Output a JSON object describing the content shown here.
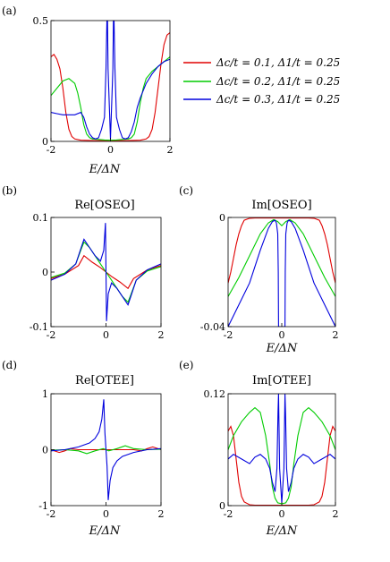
{
  "legend": [
    {
      "label": "Δc/t = 0.1, Δ1/t = 0.25",
      "color": "#e00000"
    },
    {
      "label": "Δc/t = 0.2, Δ1/t = 0.25",
      "color": "#00cc00"
    },
    {
      "label": "Δc/t = 0.3, Δ1/t = 0.25",
      "color": "#0000dd"
    }
  ],
  "chart_data": [
    {
      "panel": "(a)",
      "type": "line",
      "title": "",
      "xlabel": "E/ΔN",
      "ylabel": "",
      "xlim": [
        -2,
        2
      ],
      "ylim": [
        0,
        0.5
      ],
      "xticks": [
        "-2",
        "0",
        "2"
      ],
      "yticks": [
        "0",
        "0.5"
      ],
      "series": [
        {
          "name": "Δc/t = 0.1, Δ1/t = 0.25",
          "color": "#e00000",
          "x": [
            -2,
            -1.9,
            -1.8,
            -1.7,
            -1.6,
            -1.5,
            -1.4,
            -1.3,
            -1.2,
            -1,
            -0.5,
            0,
            0.5,
            1,
            1.2,
            1.3,
            1.4,
            1.5,
            1.6,
            1.7,
            1.8,
            1.9,
            2
          ],
          "y": [
            0.35,
            0.36,
            0.34,
            0.3,
            0.22,
            0.12,
            0.05,
            0.02,
            0.01,
            0.005,
            0.003,
            0.003,
            0.003,
            0.005,
            0.01,
            0.02,
            0.05,
            0.12,
            0.22,
            0.32,
            0.4,
            0.44,
            0.45
          ]
        },
        {
          "name": "Δc/t = 0.2, Δ1/t = 0.25",
          "color": "#00cc00",
          "x": [
            -2,
            -1.8,
            -1.6,
            -1.4,
            -1.2,
            -1.1,
            -1,
            -0.9,
            -0.8,
            -0.7,
            -0.6,
            -0.4,
            -0.2,
            0,
            0.2,
            0.4,
            0.6,
            0.7,
            0.8,
            0.9,
            1,
            1.1,
            1.2,
            1.4,
            1.6,
            1.8,
            2
          ],
          "y": [
            0.19,
            0.22,
            0.25,
            0.26,
            0.24,
            0.2,
            0.14,
            0.07,
            0.03,
            0.015,
            0.01,
            0.008,
            0.006,
            0.005,
            0.006,
            0.008,
            0.01,
            0.015,
            0.03,
            0.08,
            0.16,
            0.22,
            0.26,
            0.29,
            0.31,
            0.33,
            0.35
          ]
        },
        {
          "name": "Δc/t = 0.3, Δ1/t = 0.25",
          "color": "#0000dd",
          "x": [
            -2,
            -1.8,
            -1.6,
            -1.4,
            -1.2,
            -1,
            -0.9,
            -0.8,
            -0.7,
            -0.6,
            -0.5,
            -0.4,
            -0.3,
            -0.2,
            -0.15,
            -0.12,
            -0.1,
            -0.08,
            0,
            0.08,
            0.1,
            0.12,
            0.15,
            0.2,
            0.3,
            0.4,
            0.5,
            0.6,
            0.7,
            0.8,
            0.9,
            1,
            1.2,
            1.4,
            1.6,
            1.8,
            2
          ],
          "y": [
            0.12,
            0.115,
            0.11,
            0.11,
            0.11,
            0.12,
            0.1,
            0.06,
            0.03,
            0.015,
            0.01,
            0.015,
            0.05,
            0.1,
            0.3,
            0.5,
            0.5,
            0.3,
            0.01,
            0.3,
            0.5,
            0.5,
            0.3,
            0.1,
            0.05,
            0.015,
            0.01,
            0.015,
            0.04,
            0.08,
            0.14,
            0.18,
            0.24,
            0.28,
            0.31,
            0.33,
            0.34
          ]
        }
      ]
    },
    {
      "panel": "(b)",
      "type": "line",
      "title": "Re[OSEO]",
      "xlabel": "",
      "ylabel": "",
      "xlim": [
        -2,
        2
      ],
      "ylim": [
        -0.1,
        0.1
      ],
      "xticks": [
        "-2",
        "0",
        "2"
      ],
      "yticks": [
        "-0.1",
        "0",
        "0.1"
      ],
      "series": [
        {
          "name": "Δc/t = 0.1, Δ1/t = 0.25",
          "color": "#e00000",
          "x": [
            -2,
            -1.5,
            -1,
            -0.8,
            -0.5,
            -0.2,
            0,
            0.2,
            0.5,
            0.8,
            1,
            1.5,
            2
          ],
          "y": [
            -0.012,
            -0.004,
            0.012,
            0.03,
            0.018,
            0.008,
            0,
            -0.008,
            -0.018,
            -0.03,
            -0.012,
            0.004,
            0.012
          ]
        },
        {
          "name": "Δc/t = 0.2, Δ1/t = 0.25",
          "color": "#00cc00",
          "x": [
            -2,
            -1.5,
            -1.1,
            -0.9,
            -0.8,
            -0.6,
            -0.4,
            -0.2,
            0,
            0.2,
            0.4,
            0.6,
            0.8,
            0.9,
            1.1,
            1.5,
            2
          ],
          "y": [
            -0.01,
            -0.002,
            0.015,
            0.042,
            0.055,
            0.045,
            0.03,
            0.015,
            0,
            -0.015,
            -0.03,
            -0.045,
            -0.055,
            -0.042,
            -0.015,
            0.002,
            0.01
          ]
        },
        {
          "name": "Δc/t = 0.3, Δ1/t = 0.25",
          "color": "#0000dd",
          "x": [
            -2,
            -1.5,
            -1.1,
            -0.9,
            -0.8,
            -0.6,
            -0.4,
            -0.2,
            -0.08,
            -0.02,
            0,
            0.02,
            0.08,
            0.2,
            0.4,
            0.6,
            0.8,
            0.9,
            1.1,
            1.5,
            2
          ],
          "y": [
            -0.015,
            -0.004,
            0.015,
            0.045,
            0.06,
            0.045,
            0.03,
            0.02,
            0.04,
            0.09,
            0,
            -0.09,
            -0.04,
            -0.02,
            -0.03,
            -0.045,
            -0.06,
            -0.045,
            -0.015,
            0.004,
            0.015
          ]
        }
      ]
    },
    {
      "panel": "(c)",
      "type": "line",
      "title": "Im[OSEO]",
      "xlabel": "E/ΔN",
      "ylabel": "",
      "xlim": [
        -2,
        2
      ],
      "ylim": [
        -0.04,
        0
      ],
      "xticks": [
        "-2",
        "0",
        "2"
      ],
      "yticks": [
        "-0.04",
        "0"
      ],
      "series": [
        {
          "name": "Δc/t = 0.1, Δ1/t = 0.25",
          "color": "#e00000",
          "x": [
            -2,
            -1.9,
            -1.8,
            -1.7,
            -1.6,
            -1.5,
            -1.4,
            -1.2,
            -1,
            0,
            1,
            1.2,
            1.4,
            1.5,
            1.6,
            1.7,
            1.8,
            1.9,
            2
          ],
          "y": [
            -0.024,
            -0.02,
            -0.015,
            -0.01,
            -0.006,
            -0.003,
            -0.001,
            -0.0003,
            -0.0002,
            -0.0002,
            -0.0002,
            -0.0003,
            -0.001,
            -0.003,
            -0.006,
            -0.01,
            -0.015,
            -0.02,
            -0.024
          ]
        },
        {
          "name": "Δc/t = 0.2, Δ1/t = 0.25",
          "color": "#00cc00",
          "x": [
            -2,
            -1.6,
            -1.2,
            -0.8,
            -0.5,
            -0.3,
            -0.15,
            0,
            0.15,
            0.3,
            0.5,
            0.8,
            1.2,
            1.6,
            2
          ],
          "y": [
            -0.029,
            -0.022,
            -0.014,
            -0.006,
            -0.002,
            -0.0008,
            -0.0015,
            -0.003,
            -0.0015,
            -0.0008,
            -0.002,
            -0.006,
            -0.014,
            -0.022,
            -0.029
          ]
        },
        {
          "name": "Δc/t = 0.3, Δ1/t = 0.25",
          "color": "#0000dd",
          "x": [
            -2,
            -1.6,
            -1.2,
            -0.8,
            -0.5,
            -0.35,
            -0.25,
            -0.2,
            -0.15,
            -0.13,
            -0.12,
            0.12,
            0.13,
            0.15,
            0.2,
            0.25,
            0.35,
            0.5,
            0.8,
            1.2,
            1.6,
            2
          ],
          "y": [
            -0.04,
            -0.032,
            -0.024,
            -0.012,
            -0.004,
            -0.0015,
            -0.001,
            -0.002,
            -0.006,
            -0.02,
            -0.04,
            -0.04,
            -0.02,
            -0.006,
            -0.002,
            -0.001,
            -0.0015,
            -0.004,
            -0.012,
            -0.024,
            -0.032,
            -0.04
          ]
        }
      ]
    },
    {
      "panel": "(d)",
      "type": "line",
      "title": "Re[OTEE]",
      "xlabel": "E/ΔN",
      "ylabel": "",
      "xlim": [
        -2,
        2
      ],
      "ylim": [
        -1,
        1
      ],
      "xticks": [
        "-2",
        "0",
        "2"
      ],
      "yticks": [
        "-1",
        "0",
        "1"
      ],
      "series": [
        {
          "name": "Δc/t = 0.1, Δ1/t = 0.25",
          "color": "#e00000",
          "x": [
            -2,
            -1.7,
            -1.5,
            -1.3,
            -1,
            -0.5,
            0,
            0.5,
            1,
            1.3,
            1.5,
            1.7,
            2
          ],
          "y": [
            0,
            -0.05,
            -0.02,
            0.02,
            0,
            0,
            0,
            0,
            0,
            -0.02,
            0.02,
            0.05,
            0
          ]
        },
        {
          "name": "Δc/t = 0.2, Δ1/t = 0.25",
          "color": "#00cc00",
          "x": [
            -2,
            -1.5,
            -1,
            -0.7,
            -0.4,
            -0.1,
            0,
            0.1,
            0.4,
            0.7,
            1,
            1.5,
            2
          ],
          "y": [
            -0.01,
            0,
            -0.02,
            -0.07,
            -0.02,
            0.02,
            0,
            -0.02,
            0.02,
            0.07,
            0.02,
            0,
            0.01
          ]
        },
        {
          "name": "Δc/t = 0.3, Δ1/t = 0.25",
          "color": "#0000dd",
          "x": [
            -2,
            -1.5,
            -1,
            -0.6,
            -0.4,
            -0.25,
            -0.15,
            -0.08,
            -0.04,
            0,
            0.04,
            0.08,
            0.15,
            0.25,
            0.4,
            0.6,
            1,
            1.5,
            2
          ],
          "y": [
            -0.02,
            0,
            0.05,
            0.12,
            0.2,
            0.32,
            0.55,
            0.9,
            0.3,
            0,
            -0.3,
            -0.9,
            -0.55,
            -0.32,
            -0.2,
            -0.12,
            -0.05,
            0,
            0.02
          ]
        }
      ]
    },
    {
      "panel": "(e)",
      "type": "line",
      "title": "Im[OTEE]",
      "xlabel": "E/ΔN",
      "ylabel": "",
      "xlim": [
        -2,
        2
      ],
      "ylim": [
        0,
        0.12
      ],
      "xticks": [
        "-2",
        "0",
        "2"
      ],
      "yticks": [
        "0",
        "0.12"
      ],
      "series": [
        {
          "name": "Δc/t = 0.1, Δ1/t = 0.25",
          "color": "#e00000",
          "x": [
            -2,
            -1.9,
            -1.8,
            -1.7,
            -1.6,
            -1.5,
            -1.4,
            -1.2,
            -1,
            0,
            1,
            1.2,
            1.4,
            1.5,
            1.6,
            1.7,
            1.8,
            1.9,
            2
          ],
          "y": [
            0.08,
            0.085,
            0.075,
            0.05,
            0.025,
            0.01,
            0.004,
            0.001,
            0.0005,
            0.0005,
            0.0005,
            0.001,
            0.004,
            0.01,
            0.025,
            0.05,
            0.075,
            0.085,
            0.08
          ]
        },
        {
          "name": "Δc/t = 0.2, Δ1/t = 0.25",
          "color": "#00cc00",
          "x": [
            -2,
            -1.8,
            -1.5,
            -1.2,
            -1,
            -0.8,
            -0.6,
            -0.45,
            -0.35,
            -0.25,
            -0.15,
            0,
            0.15,
            0.25,
            0.35,
            0.45,
            0.6,
            0.8,
            1,
            1.2,
            1.5,
            1.8,
            2
          ],
          "y": [
            0.06,
            0.075,
            0.09,
            0.1,
            0.105,
            0.1,
            0.075,
            0.045,
            0.02,
            0.008,
            0.003,
            0.002,
            0.003,
            0.008,
            0.02,
            0.045,
            0.075,
            0.1,
            0.105,
            0.1,
            0.09,
            0.075,
            0.06
          ]
        },
        {
          "name": "Δc/t = 0.3, Δ1/t = 0.25",
          "color": "#0000dd",
          "x": [
            -2,
            -1.8,
            -1.5,
            -1.2,
            -1,
            -0.8,
            -0.6,
            -0.45,
            -0.35,
            -0.25,
            -0.18,
            -0.14,
            -0.12,
            -0.08,
            0,
            0.08,
            0.12,
            0.14,
            0.18,
            0.25,
            0.35,
            0.45,
            0.6,
            0.8,
            1,
            1.2,
            1.5,
            1.8,
            2
          ],
          "y": [
            0.05,
            0.055,
            0.05,
            0.045,
            0.052,
            0.055,
            0.05,
            0.04,
            0.025,
            0.015,
            0.04,
            0.1,
            0.12,
            0.04,
            0.003,
            0.04,
            0.12,
            0.1,
            0.04,
            0.015,
            0.025,
            0.04,
            0.05,
            0.055,
            0.052,
            0.045,
            0.05,
            0.055,
            0.05
          ]
        }
      ]
    }
  ]
}
